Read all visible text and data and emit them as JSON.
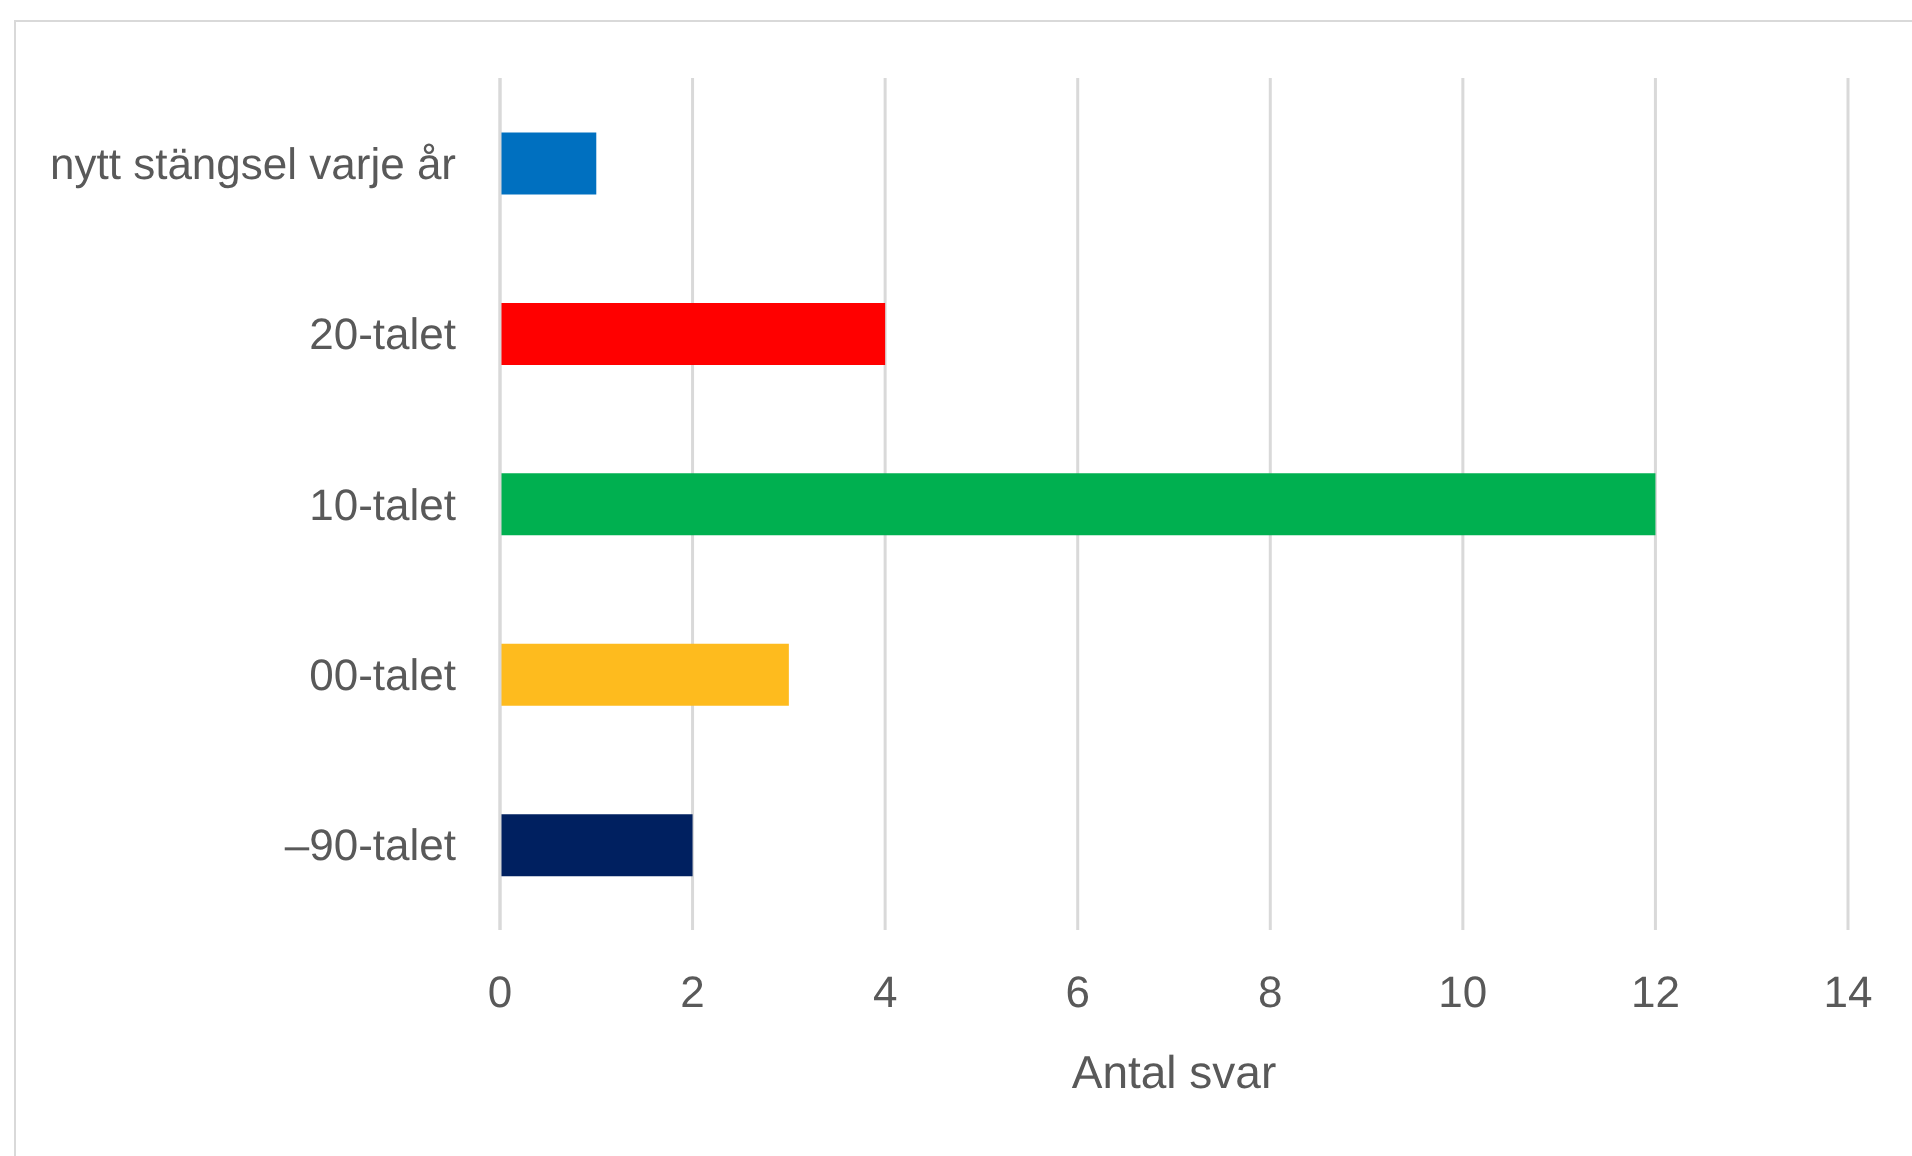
{
  "chart_data": {
    "type": "bar",
    "orientation": "horizontal",
    "categories": [
      "nytt stängsel varje år",
      "20-talet",
      "10-talet",
      "00-talet",
      "–90-talet"
    ],
    "values": [
      1,
      4,
      12,
      3,
      2
    ],
    "colors": [
      "#0070c0",
      "#ff0000",
      "#00b050",
      "#febb1e",
      "#002060"
    ],
    "xlabel": "Antal svar",
    "xlim": [
      0,
      14
    ],
    "xticks": [
      0,
      2,
      4,
      6,
      8,
      10,
      12,
      14
    ],
    "grid": "x"
  }
}
